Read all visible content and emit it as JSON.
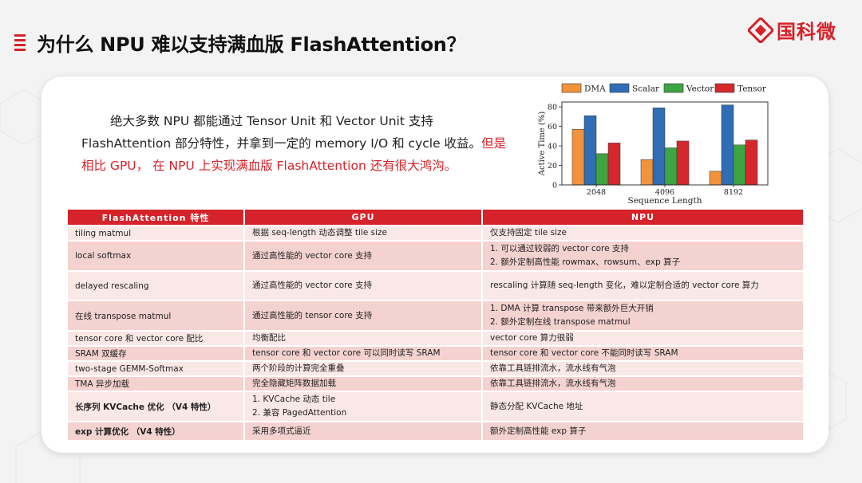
{
  "slide": {
    "title": "为什么 NPU 难以支持满血版 FlashAttention？",
    "logo_text": "国科微",
    "intro": {
      "part1": "绝大多数 NPU 都能通过 Tensor Unit 和 Vector Unit 支持 FlashAttention 部分特性，并拿到一定的 memory I/O 和 cycle 收益。",
      "part2_red": "但是相比 GPU， 在 NPU 上实现满血版 FlashAttention 还有很大鸿沟。"
    }
  },
  "colors": {
    "accent": "#d6222a",
    "row_light": "#fae8e6",
    "row_dark": "#f4d2cf"
  },
  "chart_data": {
    "type": "bar",
    "categories": [
      "2048",
      "4096",
      "8192"
    ],
    "series": [
      {
        "name": "DMA",
        "values": [
          57,
          26,
          14
        ],
        "color": "#f0933b"
      },
      {
        "name": "Scalar",
        "values": [
          71,
          79,
          82
        ],
        "color": "#2f6db5"
      },
      {
        "name": "Vector",
        "values": [
          32,
          38,
          41
        ],
        "color": "#3da442"
      },
      {
        "name": "Tensor",
        "values": [
          43,
          45,
          46
        ],
        "color": "#d6282c"
      }
    ],
    "xlabel": "Sequence Length",
    "ylabel": "Active Time (%)",
    "ylim": [
      0,
      85
    ],
    "yticks": [
      0,
      20,
      40,
      60,
      80
    ],
    "legend": "top"
  },
  "table": {
    "headers": [
      "FlashAttention 特性",
      "GPU",
      "NPU"
    ],
    "rows": [
      {
        "feature": "tiling matmul",
        "gpu": [
          "根据 seq-length 动态调整 tile size"
        ],
        "npu": [
          "仅支持固定 tile size"
        ],
        "bold": false
      },
      {
        "feature": "local softmax",
        "gpu": [
          "通过高性能的 vector core 支持"
        ],
        "npu": [
          "1. 可以通过较弱的 vector core 支持",
          "2. 额外定制高性能 rowmax、rowsum、exp 算子"
        ],
        "bold": false
      },
      {
        "feature": "delayed rescaling",
        "gpu": [
          "通过高性能的 vector core 支持"
        ],
        "npu": [
          "rescaling 计算随 seq-length 变化，难以定制合适的 vector core 算力"
        ],
        "bold": false
      },
      {
        "feature": "在线 transpose matmul",
        "gpu": [
          "通过高性能的 tensor core 支持"
        ],
        "npu": [
          "1. DMA 计算 transpose 带来额外巨大开销",
          "2. 额外定制在线 transpose matmul"
        ],
        "bold": false
      },
      {
        "feature": "tensor core 和 vector core 配比",
        "gpu": [
          "均衡配比"
        ],
        "npu": [
          "vector core 算力很弱"
        ],
        "bold": false
      },
      {
        "feature": "SRAM 双缓存",
        "gpu": [
          "tensor core 和 vector core 可以同时读写 SRAM"
        ],
        "npu": [
          "tensor core 和 vector core 不能同时读写 SRAM"
        ],
        "bold": false
      },
      {
        "feature": "two-stage GEMM-Softmax",
        "gpu": [
          "两个阶段的计算完全重叠"
        ],
        "npu": [
          "依靠工具链排流水，流水线有气泡"
        ],
        "bold": false
      },
      {
        "feature": "TMA 异步加载",
        "gpu": [
          "完全隐藏矩阵数据加载"
        ],
        "npu": [
          "依靠工具链排流水，流水线有气泡"
        ],
        "bold": false
      },
      {
        "feature": "长序列 KVCache 优化 （V4 特性）",
        "gpu": [
          "1. KVCache 动态 tile",
          "2. 兼容 PagedAttention"
        ],
        "npu": [
          "静态分配 KVCache 地址"
        ],
        "bold": true
      },
      {
        "feature": "exp 计算优化 （V4 特性）",
        "gpu": [
          "采用多项式逼近"
        ],
        "npu": [
          "额外定制高性能 exp 算子"
        ],
        "bold": true
      }
    ]
  }
}
